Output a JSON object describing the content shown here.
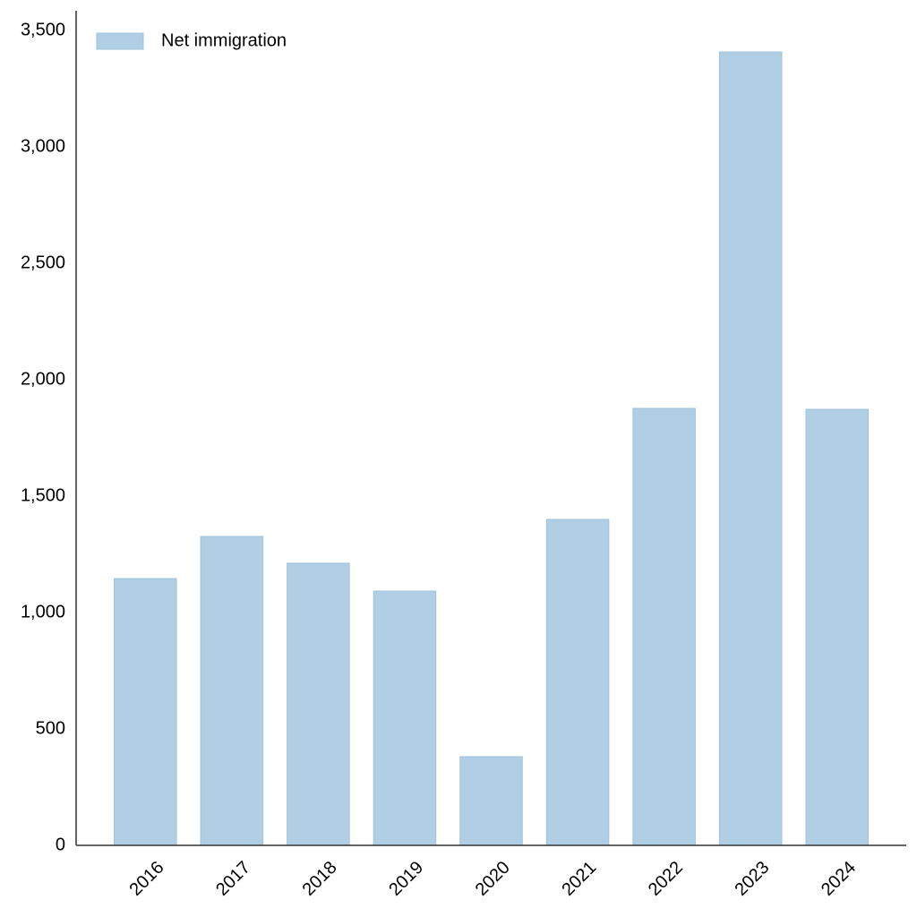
{
  "chart_data": {
    "type": "bar",
    "categories": [
      "2016",
      "2017",
      "2018",
      "2019",
      "2020",
      "2021",
      "2022",
      "2023",
      "2024"
    ],
    "series": [
      {
        "name": "Net immigration",
        "color": "#b0cfe4",
        "values": [
          1146,
          1327,
          1212,
          1092,
          381,
          1400,
          1877,
          3408,
          1873
        ]
      }
    ],
    "ylim": [
      0,
      3585
    ],
    "yticks": [
      0,
      500,
      {
        "value": 1000,
        "label": "1,000"
      },
      {
        "value": 1500,
        "label": "1,500"
      },
      {
        "value": 2000,
        "label": "2,000"
      },
      {
        "value": 2500,
        "label": "2,500"
      },
      {
        "value": 3000,
        "label": "3,000"
      },
      {
        "value": 3500,
        "label": "3,500"
      }
    ],
    "grid": false,
    "legend": "upper left"
  }
}
